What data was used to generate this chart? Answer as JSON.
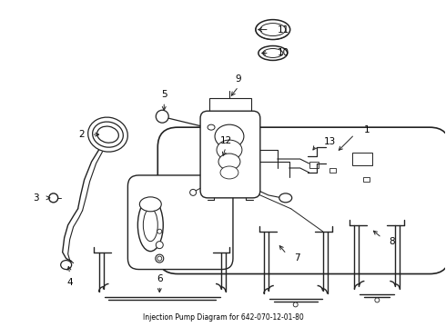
{
  "title": "Injection Pump Diagram for 642-070-12-01-80",
  "bg_color": "#ffffff",
  "line_color": "#222222",
  "text_color": "#000000",
  "figsize": [
    4.9,
    3.6
  ],
  "dpi": 100
}
